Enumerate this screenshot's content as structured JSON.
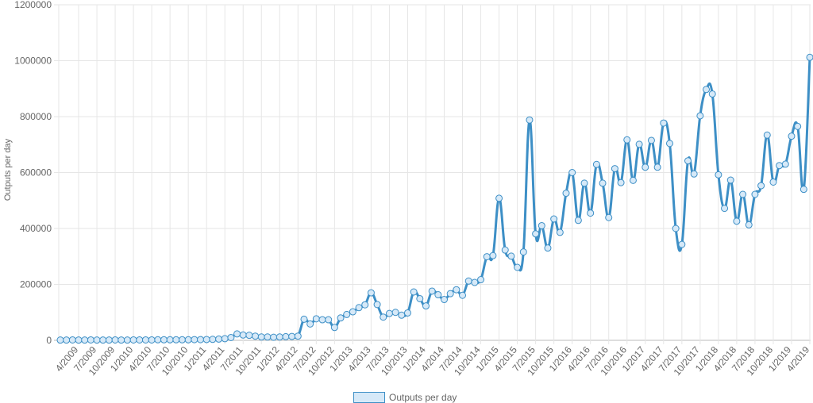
{
  "chart_data": {
    "type": "line",
    "title": "",
    "xlabel": "",
    "ylabel": "Outputs per day",
    "ylim": [
      0,
      1200000
    ],
    "y_ticks": [
      "0",
      "200000",
      "400000",
      "600000",
      "800000",
      "1000000",
      "1200000"
    ],
    "x_tick_labels": [
      "4/2009",
      "7/2009",
      "10/2009",
      "1/2010",
      "4/2010",
      "7/2010",
      "10/2010",
      "1/2011",
      "4/2011",
      "7/2011",
      "10/2011",
      "1/2012",
      "4/2012",
      "7/2012",
      "10/2012",
      "1/2013",
      "4/2013",
      "7/2013",
      "10/2013",
      "1/2014",
      "4/2014",
      "7/2014",
      "10/2014",
      "1/2015",
      "4/2015",
      "7/2015",
      "10/2015",
      "1/2016",
      "4/2016",
      "7/2016",
      "10/2016",
      "1/2017",
      "4/2017",
      "7/2017",
      "10/2017",
      "1/2018",
      "4/2018",
      "7/2018",
      "10/2018",
      "1/2019",
      "4/2019"
    ],
    "x_start": "1/2009",
    "x_end": "4/2019",
    "x_interval": "monthly",
    "grid": true,
    "legend_position": "bottom",
    "series": [
      {
        "name": "Outputs per day",
        "color": "#3d8fc6",
        "point_fill": "#d6e9f8",
        "values": [
          1000,
          1000,
          1500,
          1000,
          1000,
          1500,
          1000,
          1000,
          1000,
          1500,
          1000,
          1000,
          1500,
          1500,
          1500,
          1500,
          2000,
          2000,
          2000,
          2000,
          2000,
          2000,
          2500,
          2500,
          3000,
          3500,
          4500,
          6000,
          10000,
          23000,
          19000,
          18000,
          15000,
          12000,
          12000,
          11000,
          12000,
          13000,
          14000,
          15000,
          75500,
          58500,
          77000,
          73600,
          73600,
          46000,
          80000,
          92500,
          102000,
          117000,
          127000,
          170000,
          128000,
          83000,
          96000,
          100000,
          90000,
          98000,
          173000,
          149000,
          123000,
          176000,
          163000,
          146000,
          167000,
          181000,
          161000,
          212000,
          207000,
          217000,
          299000,
          303000,
          508000,
          323000,
          301000,
          261000,
          316000,
          788000,
          381000,
          410000,
          330000,
          434000,
          386000,
          526000,
          600000,
          429000,
          562000,
          455000,
          629000,
          562000,
          439000,
          614000,
          564000,
          717000,
          572000,
          701000,
          619000,
          715000,
          619000,
          777000,
          704000,
          400000,
          343000,
          642000,
          595000,
          803000,
          897000,
          881000,
          592000,
          472000,
          573000,
          426000,
          522000,
          413000,
          522000,
          553000,
          734000,
          566000,
          625000,
          630000,
          730000,
          765000,
          540000,
          1012000
        ]
      }
    ]
  }
}
